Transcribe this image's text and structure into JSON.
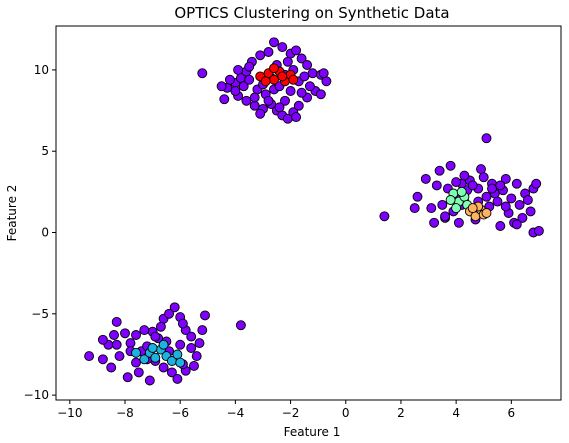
{
  "chart_data": {
    "type": "scatter",
    "title": "OPTICS Clustering on Synthetic Data",
    "xlabel": "Feature 1",
    "ylabel": "Feature 2",
    "xlim": [
      -10.5,
      7.8
    ],
    "ylim": [
      -10.3,
      12.7
    ],
    "xticks": [
      -10,
      -8,
      -6,
      -4,
      -2,
      0,
      2,
      4,
      6
    ],
    "yticks": [
      -10,
      -5,
      0,
      5,
      10
    ],
    "grid": false,
    "legend": "none",
    "series": [
      {
        "color": "#7f00ff",
        "points": [
          [
            -5.2,
            9.8
          ],
          [
            -4.3,
            8.9
          ],
          [
            -4.0,
            9.2
          ],
          [
            -3.8,
            9.5
          ],
          [
            -3.6,
            9.9
          ],
          [
            -3.4,
            10.5
          ],
          [
            -3.1,
            10.9
          ],
          [
            -2.8,
            11.1
          ],
          [
            -2.6,
            11.7
          ],
          [
            -2.3,
            11.4
          ],
          [
            -2.0,
            11.0
          ],
          [
            -1.8,
            11.2
          ],
          [
            -1.6,
            10.7
          ],
          [
            -1.4,
            10.3
          ],
          [
            -1.2,
            9.8
          ],
          [
            -0.9,
            9.7
          ],
          [
            -0.7,
            9.3
          ],
          [
            -3.9,
            8.4
          ],
          [
            -3.6,
            8.1
          ],
          [
            -3.3,
            7.8
          ],
          [
            -3.0,
            7.6
          ],
          [
            -2.7,
            7.9
          ],
          [
            -2.5,
            7.5
          ],
          [
            -2.3,
            7.2
          ],
          [
            -2.1,
            7.0
          ],
          [
            -1.9,
            7.4
          ],
          [
            -1.7,
            7.8
          ],
          [
            -1.4,
            8.3
          ],
          [
            -1.1,
            8.7
          ],
          [
            -0.9,
            8.5
          ],
          [
            -4.4,
            8.2
          ],
          [
            -4.0,
            8.7
          ],
          [
            -3.7,
            9.0
          ],
          [
            -3.2,
            8.8
          ],
          [
            -2.9,
            8.5
          ],
          [
            -2.6,
            8.8
          ],
          [
            -2.4,
            9.0
          ],
          [
            -2.0,
            8.7
          ],
          [
            -1.7,
            9.3
          ],
          [
            -1.5,
            9.6
          ],
          [
            -3.5,
            9.4
          ],
          [
            -3.0,
            9.1
          ],
          [
            -2.7,
            9.5
          ],
          [
            -2.2,
            9.7
          ],
          [
            -1.9,
            10.0
          ],
          [
            -3.9,
            10.0
          ],
          [
            -3.3,
            8.3
          ],
          [
            -2.8,
            8.1
          ],
          [
            -2.2,
            8.1
          ],
          [
            -1.6,
            8.6
          ],
          [
            -4.2,
            9.4
          ],
          [
            -3.5,
            10.2
          ],
          [
            -2.5,
            10.3
          ],
          [
            -1.3,
            9.0
          ],
          [
            -3.1,
            7.3
          ],
          [
            -2.4,
            7.7
          ],
          [
            -1.8,
            7.1
          ],
          [
            -4.5,
            9.0
          ],
          [
            -0.8,
            9.8
          ],
          [
            -2.1,
            10.5
          ],
          [
            -9.3,
            -7.6
          ],
          [
            -8.8,
            -7.8
          ],
          [
            -8.6,
            -6.9
          ],
          [
            -8.4,
            -6.3
          ],
          [
            -8.3,
            -5.5
          ],
          [
            -8.0,
            -6.2
          ],
          [
            -7.8,
            -6.8
          ],
          [
            -7.6,
            -6.3
          ],
          [
            -7.4,
            -7.3
          ],
          [
            -7.2,
            -7.0
          ],
          [
            -7.0,
            -6.1
          ],
          [
            -6.8,
            -6.5
          ],
          [
            -6.6,
            -5.3
          ],
          [
            -6.4,
            -5.0
          ],
          [
            -6.2,
            -4.6
          ],
          [
            -6.0,
            -5.2
          ],
          [
            -5.8,
            -6.0
          ],
          [
            -5.6,
            -6.4
          ],
          [
            -5.3,
            -6.8
          ],
          [
            -5.1,
            -5.1
          ],
          [
            -3.8,
            -5.7
          ],
          [
            -8.5,
            -8.3
          ],
          [
            -8.2,
            -7.6
          ],
          [
            -7.9,
            -8.9
          ],
          [
            -7.5,
            -8.6
          ],
          [
            -7.1,
            -9.1
          ],
          [
            -6.6,
            -8.3
          ],
          [
            -6.3,
            -8.6
          ],
          [
            -6.1,
            -9.0
          ],
          [
            -5.8,
            -8.5
          ],
          [
            -5.5,
            -8.2
          ],
          [
            -5.4,
            -7.6
          ],
          [
            -5.6,
            -7.1
          ],
          [
            -6.9,
            -7.9
          ],
          [
            -7.6,
            -8.0
          ],
          [
            -8.8,
            -6.6
          ],
          [
            -7.3,
            -6.0
          ],
          [
            -6.5,
            -6.7
          ],
          [
            -5.9,
            -5.6
          ],
          [
            -6.7,
            -5.8
          ],
          [
            -7.8,
            -7.3
          ],
          [
            -5.2,
            -6.0
          ],
          [
            -8.3,
            -6.9
          ],
          [
            -6.9,
            -6.4
          ],
          [
            -6.0,
            -6.9
          ],
          [
            -5.9,
            -8.1
          ],
          [
            -7.2,
            -7.8
          ],
          [
            -6.4,
            -7.3
          ],
          [
            1.4,
            1.0
          ],
          [
            2.5,
            1.5
          ],
          [
            2.6,
            2.2
          ],
          [
            2.9,
            3.3
          ],
          [
            3.1,
            1.5
          ],
          [
            3.2,
            0.6
          ],
          [
            3.3,
            2.9
          ],
          [
            3.4,
            3.8
          ],
          [
            3.5,
            1.7
          ],
          [
            3.6,
            0.9
          ],
          [
            3.7,
            2.7
          ],
          [
            3.8,
            4.1
          ],
          [
            3.9,
            1.3
          ],
          [
            4.0,
            2.2
          ],
          [
            4.1,
            0.6
          ],
          [
            4.2,
            3.0
          ],
          [
            4.3,
            1.9
          ],
          [
            4.4,
            2.6
          ],
          [
            4.5,
            3.2
          ],
          [
            4.6,
            1.4
          ],
          [
            4.7,
            0.8
          ],
          [
            4.8,
            2.7
          ],
          [
            4.9,
            3.9
          ],
          [
            5.0,
            3.4
          ],
          [
            5.1,
            2.2
          ],
          [
            5.2,
            1.6
          ],
          [
            5.1,
            5.8
          ],
          [
            5.3,
            3.0
          ],
          [
            5.4,
            2.4
          ],
          [
            5.5,
            1.9
          ],
          [
            5.6,
            0.4
          ],
          [
            5.7,
            2.6
          ],
          [
            5.8,
            3.3
          ],
          [
            5.9,
            1.2
          ],
          [
            6.0,
            2.1
          ],
          [
            6.1,
            0.6
          ],
          [
            6.2,
            3.0
          ],
          [
            6.3,
            1.7
          ],
          [
            6.4,
            0.9
          ],
          [
            6.5,
            2.4
          ],
          [
            6.7,
            1.3
          ],
          [
            6.8,
            2.7
          ],
          [
            6.8,
            0.0
          ],
          [
            7.0,
            0.1
          ],
          [
            6.9,
            3.0
          ],
          [
            4.2,
            1.7
          ],
          [
            4.6,
            2.9
          ],
          [
            5.3,
            2.7
          ],
          [
            5.8,
            1.6
          ],
          [
            6.2,
            0.5
          ],
          [
            4.0,
            3.1
          ],
          [
            3.6,
            1.0
          ],
          [
            4.3,
            3.5
          ],
          [
            5.6,
            2.9
          ],
          [
            6.6,
            2.0
          ],
          [
            4.8,
            1.9
          ]
        ]
      },
      {
        "color": "#ff0000",
        "points": [
          [
            -3.1,
            9.6
          ],
          [
            -2.8,
            9.8
          ],
          [
            -2.6,
            9.4
          ],
          [
            -2.4,
            9.9
          ],
          [
            -2.2,
            9.3
          ],
          [
            -2.0,
            9.7
          ],
          [
            -2.6,
            10.1
          ],
          [
            -2.9,
            9.3
          ],
          [
            -2.3,
            9.6
          ],
          [
            -1.9,
            9.4
          ]
        ]
      },
      {
        "color": "#1cb3e0",
        "points": [
          [
            -7.6,
            -7.4
          ],
          [
            -7.3,
            -7.8
          ],
          [
            -7.1,
            -7.4
          ],
          [
            -6.9,
            -7.7
          ],
          [
            -6.7,
            -7.2
          ],
          [
            -6.5,
            -7.6
          ],
          [
            -6.3,
            -7.9
          ],
          [
            -6.1,
            -7.5
          ],
          [
            -6.6,
            -6.9
          ],
          [
            -7.0,
            -7.1
          ],
          [
            -6.0,
            -8.0
          ]
        ]
      },
      {
        "color": "#80ffb4",
        "points": [
          [
            3.9,
            2.4
          ],
          [
            4.1,
            1.9
          ],
          [
            4.3,
            2.2
          ],
          [
            4.0,
            1.5
          ],
          [
            4.4,
            1.7
          ],
          [
            3.8,
            2.0
          ],
          [
            4.2,
            2.5
          ]
        ]
      },
      {
        "color": "#ffb360",
        "points": [
          [
            4.5,
            1.3
          ],
          [
            4.7,
            1.0
          ],
          [
            4.9,
            1.4
          ],
          [
            5.0,
            1.1
          ],
          [
            4.8,
            1.6
          ],
          [
            4.6,
            1.5
          ],
          [
            5.1,
            1.2
          ]
        ]
      }
    ]
  }
}
